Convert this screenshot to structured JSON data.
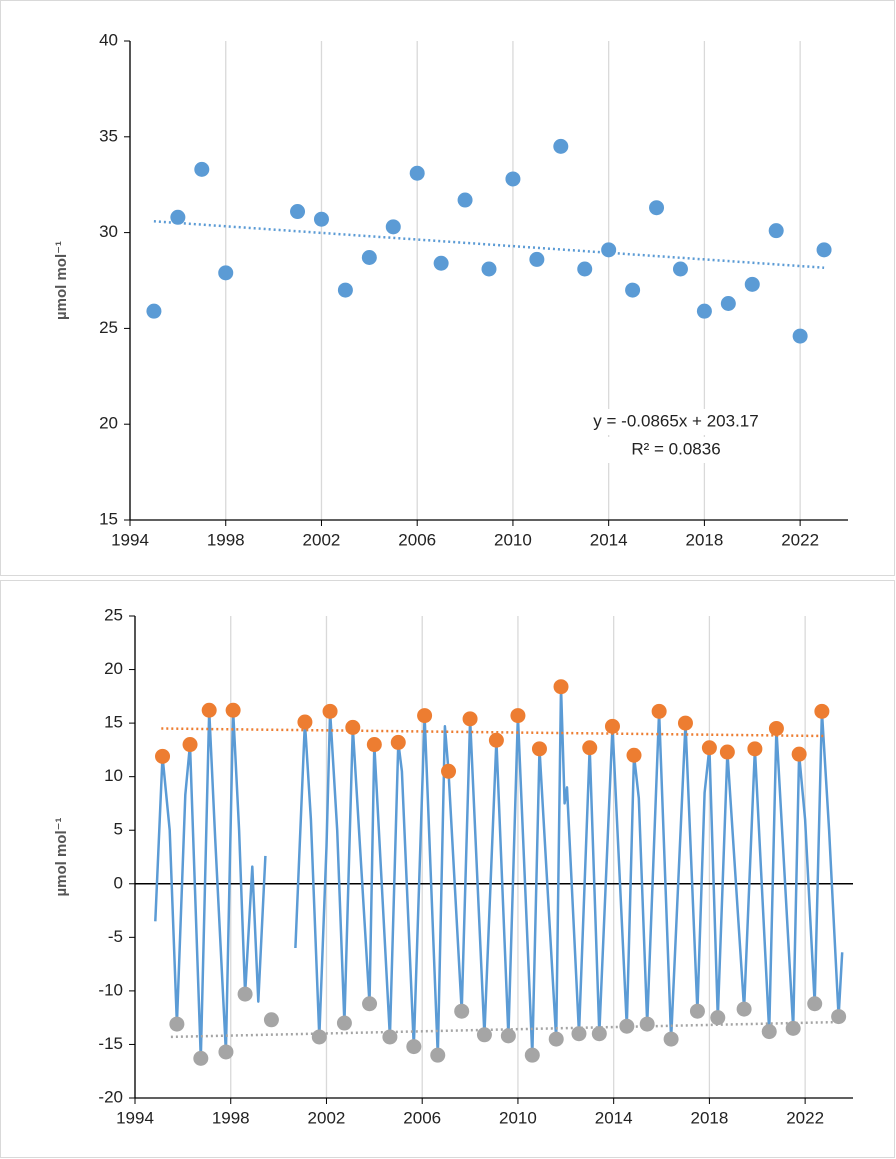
{
  "chart_data": [
    {
      "type": "scatter",
      "ylabel": "µmol mol⁻¹",
      "x": [
        1995,
        1996,
        1997,
        1998,
        2001,
        2002,
        2003,
        2004,
        2005,
        2006,
        2007,
        2008,
        2009,
        2010,
        2011,
        2012,
        2013,
        2014,
        2015,
        2016,
        2017,
        2018,
        2019,
        2020,
        2021,
        2022,
        2023
      ],
      "values": [
        25.9,
        30.8,
        33.3,
        27.9,
        31.1,
        30.7,
        27.0,
        28.7,
        30.3,
        33.1,
        28.4,
        31.7,
        28.1,
        32.8,
        28.6,
        34.5,
        28.1,
        29.1,
        27.0,
        31.3,
        28.1,
        25.9,
        26.3,
        27.3,
        30.1,
        24.6,
        29.1
      ],
      "color": "#5b9bd5",
      "trendline": {
        "x": [
          1995,
          2023
        ],
        "values": [
          30.59,
          28.17
        ],
        "color": "#5b9bd5"
      },
      "annotations": [
        "y = -0.0865x + 203.17",
        "R² = 0.0836"
      ],
      "xlim": [
        1994,
        2024
      ],
      "ylim": [
        15,
        40
      ],
      "xticks": [
        1994,
        1998,
        2002,
        2006,
        2010,
        2014,
        2018,
        2022
      ],
      "yticks": [
        15,
        20,
        25,
        30,
        35,
        40
      ],
      "grid": true
    },
    {
      "type": "line",
      "ylabel": "µmol mol⁻¹",
      "series": [
        {
          "mode": "line",
          "color": "#5b9bd5",
          "x": [
            1994.85,
            1995.15,
            1995.45,
            1995.75,
            1996.1,
            1996.3,
            1996.75,
            1997.1,
            1997.35,
            1997.8,
            1998.1,
            1998.35,
            1998.6,
            1998.9,
            1999.15,
            1999.45,
            null,
            2000.7,
            2001.1,
            2001.35,
            2001.7,
            2002.0,
            2002.15,
            2002.45,
            2002.75,
            2003.1,
            2003.8,
            2004.0,
            2004.65,
            2005.0,
            2005.15,
            2005.65,
            2006.1,
            2006.65,
            2006.95,
            2007.1,
            2007.65,
            2008.0,
            2008.6,
            2009.1,
            2009.6,
            2010.0,
            2010.6,
            2010.9,
            2011.6,
            2011.8,
            2011.95,
            2012.05,
            2012.55,
            2013.0,
            2013.4,
            2013.95,
            2014.55,
            2014.85,
            2015.05,
            2015.4,
            2015.9,
            2016.4,
            2017.0,
            2017.5,
            2017.8,
            2018.0,
            2018.35,
            2018.75,
            2019.45,
            2019.9,
            2020.5,
            2020.8,
            2021.5,
            2021.75,
            2022.0,
            2022.4,
            2022.7,
            2023.0,
            2023.4,
            2023.55
          ],
          "values": [
            -3.5,
            11.9,
            5,
            -13.1,
            8.3,
            13.0,
            -16.3,
            16.2,
            4.2,
            -15.7,
            16.2,
            5,
            -10.3,
            1.6,
            -11,
            2.6,
            null,
            -6.0,
            15.1,
            6,
            -14.3,
            3.5,
            16.1,
            5,
            -13.0,
            14.6,
            -11.2,
            13.0,
            -14.3,
            13.2,
            10.5,
            -15.2,
            15.7,
            -16.0,
            14.7,
            10.5,
            -11.9,
            15.4,
            -14.1,
            13.4,
            -14.2,
            15.7,
            -16.0,
            12.6,
            -14.5,
            18.4,
            7.5,
            9,
            -14.0,
            12.7,
            -14.0,
            14.7,
            -13.3,
            12.0,
            8,
            -13.1,
            16.1,
            -14.5,
            15.0,
            -11.9,
            8.5,
            12.7,
            -12.5,
            12.3,
            -11.7,
            12.6,
            -13.8,
            14.5,
            -13.5,
            12.1,
            6,
            -11.2,
            16.1,
            5,
            -12.4,
            -6.4
          ]
        },
        {
          "mode": "markers",
          "color": "#ed7d31",
          "x": [
            1995.15,
            1996.3,
            1997.1,
            1998.1,
            2001.1,
            2002.15,
            2003.1,
            2004.0,
            2005.0,
            2006.1,
            2007.1,
            2008.0,
            2009.1,
            2010.0,
            2010.9,
            2011.8,
            2013.0,
            2013.95,
            2014.85,
            2015.9,
            2017.0,
            2018.0,
            2018.75,
            2019.9,
            2020.8,
            2021.75,
            2022.7
          ],
          "values": [
            11.9,
            13.0,
            16.2,
            16.2,
            15.1,
            16.1,
            14.6,
            13.0,
            13.2,
            15.7,
            10.5,
            15.4,
            13.4,
            15.7,
            12.6,
            18.4,
            12.7,
            14.7,
            12.0,
            16.1,
            15.0,
            12.7,
            12.3,
            12.6,
            14.5,
            12.1,
            16.1
          ]
        },
        {
          "mode": "markers",
          "color": "#a5a5a5",
          "x": [
            1995.75,
            1996.75,
            1997.8,
            1998.6,
            1999.7,
            2001.7,
            2002.75,
            2003.8,
            2004.65,
            2005.65,
            2006.65,
            2007.65,
            2008.6,
            2009.6,
            2010.6,
            2011.6,
            2012.55,
            2013.4,
            2014.55,
            2015.4,
            2016.4,
            2017.5,
            2018.35,
            2019.45,
            2020.5,
            2021.5,
            2022.4,
            2023.4
          ],
          "values": [
            -13.1,
            -16.3,
            -15.7,
            -10.3,
            -12.7,
            -14.3,
            -13.0,
            -11.2,
            -14.3,
            -15.2,
            -16.0,
            -11.9,
            -14.1,
            -14.2,
            -16.0,
            -14.5,
            -14.0,
            -14.0,
            -13.3,
            -13.1,
            -14.5,
            -11.9,
            -12.5,
            -11.7,
            -13.8,
            -13.5,
            -11.2,
            -12.4
          ]
        },
        {
          "mode": "dotted",
          "color": "#ed7d31",
          "x": [
            1995.1,
            2022.8
          ],
          "values": [
            14.5,
            13.8
          ]
        },
        {
          "mode": "dotted",
          "color": "#a5a5a5",
          "x": [
            1995.5,
            2023.5
          ],
          "values": [
            -14.3,
            -12.9
          ]
        }
      ],
      "zero_line": true,
      "xlim": [
        1994,
        2024
      ],
      "ylim": [
        -20,
        25
      ],
      "xticks": [
        1994,
        1998,
        2002,
        2006,
        2010,
        2014,
        2018,
        2022
      ],
      "yticks": [
        -20,
        -15,
        -10,
        -5,
        0,
        5,
        10,
        15,
        20,
        25
      ],
      "grid": true
    }
  ]
}
